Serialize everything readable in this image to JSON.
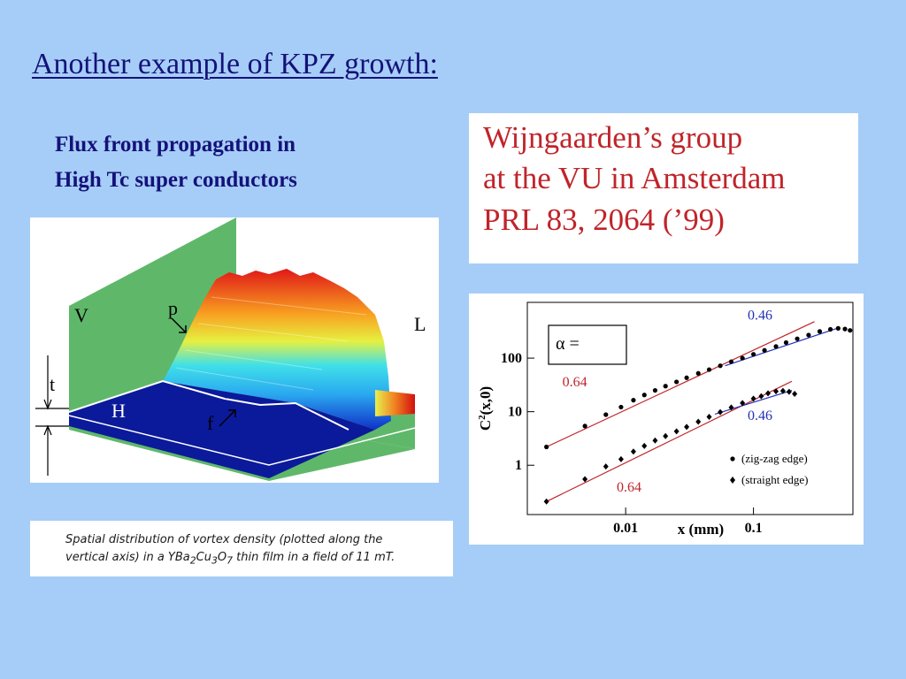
{
  "slide": {
    "title": "Another example of KPZ growth:",
    "subtitle_line1": "Flux front propagation in",
    "subtitle_line2": "High Tc super conductors"
  },
  "reference": {
    "line1": "Wijngaarden’s group",
    "line2": "at the VU in Amsterdam",
    "line3": "PRL 83, 2064 (’99)"
  },
  "surface_figure": {
    "label_v": "V",
    "label_p": "p",
    "label_l": "L",
    "label_t": "t",
    "label_h": "H",
    "label_f": "f"
  },
  "caption": {
    "line1": "Spatial distribution of vortex density (plotted along the",
    "line2_part1": "vertical axis) in a YBa",
    "sub2": "2",
    "line2_part2": "Cu",
    "sub3": "3",
    "line2_part3": "O",
    "sub7": "7",
    "line2_part4": " thin film in a field of 11 mT."
  },
  "chart_data": {
    "type": "scatter",
    "xlabel": "x (mm)",
    "ylabel_main": "C",
    "ylabel_sup": "2",
    "ylabel_rest": "(x,0)",
    "x_scale": "log",
    "y_scale": "log",
    "xlim": [
      0.0017,
      0.6
    ],
    "ylim": [
      0.12,
      1100
    ],
    "x_ticks": [
      0.01,
      0.1
    ],
    "x_tick_labels": [
      "0.01",
      "0.1"
    ],
    "y_ticks": [
      1,
      10,
      100
    ],
    "y_tick_labels": [
      "1",
      "10",
      "100"
    ],
    "legend_box_text": "α =",
    "series": [
      {
        "name": "(zig-zag edge)",
        "marker": "circle",
        "points": [
          [
            0.0024,
            2.2
          ],
          [
            0.0048,
            5.4
          ],
          [
            0.007,
            8.8
          ],
          [
            0.0092,
            12.2
          ],
          [
            0.0115,
            16.4
          ],
          [
            0.014,
            20.5
          ],
          [
            0.017,
            25
          ],
          [
            0.0205,
            30
          ],
          [
            0.025,
            36
          ],
          [
            0.03,
            43
          ],
          [
            0.037,
            52
          ],
          [
            0.045,
            61
          ],
          [
            0.055,
            72
          ],
          [
            0.067,
            86
          ],
          [
            0.082,
            100
          ],
          [
            0.1,
            118
          ],
          [
            0.122,
            140
          ],
          [
            0.15,
            165
          ],
          [
            0.18,
            195
          ],
          [
            0.22,
            230
          ],
          [
            0.27,
            270
          ],
          [
            0.33,
            315
          ],
          [
            0.4,
            345
          ],
          [
            0.46,
            360
          ],
          [
            0.52,
            350
          ],
          [
            0.57,
            330
          ]
        ]
      },
      {
        "name": "(straight edge)",
        "marker": "diamond",
        "points": [
          [
            0.0024,
            0.21
          ],
          [
            0.0048,
            0.55
          ],
          [
            0.007,
            0.95
          ],
          [
            0.0092,
            1.3
          ],
          [
            0.0115,
            1.8
          ],
          [
            0.014,
            2.3
          ],
          [
            0.017,
            2.9
          ],
          [
            0.0205,
            3.5
          ],
          [
            0.025,
            4.3
          ],
          [
            0.03,
            5.2
          ],
          [
            0.037,
            6.5
          ],
          [
            0.045,
            8
          ],
          [
            0.055,
            9.8
          ],
          [
            0.067,
            12
          ],
          [
            0.082,
            14.5
          ],
          [
            0.1,
            17.5
          ],
          [
            0.115,
            19.5
          ],
          [
            0.13,
            22
          ],
          [
            0.15,
            24
          ],
          [
            0.17,
            24.5
          ],
          [
            0.19,
            23.5
          ],
          [
            0.21,
            21.5
          ]
        ]
      }
    ],
    "fit_lines": [
      {
        "label": "0.64",
        "color": "#c0242a",
        "from": [
          0.0024,
          2.2
        ],
        "to": [
          0.3,
          480
        ]
      },
      {
        "label": "0.46",
        "color": "#2230b8",
        "from": [
          0.06,
          72
        ],
        "to": [
          0.45,
          360
        ]
      },
      {
        "label": "0.64",
        "color": "#c0242a",
        "from": [
          0.0024,
          0.21
        ],
        "to": [
          0.2,
          37
        ]
      },
      {
        "label": "0.46",
        "color": "#2230b8",
        "from": [
          0.05,
          9
        ],
        "to": [
          0.2,
          25
        ]
      }
    ],
    "annotation_labels": [
      {
        "text": "0.64",
        "color": "#c0242a",
        "x": 0.0032,
        "y": 30
      },
      {
        "text": "0.46",
        "color": "#2230b8",
        "x": 0.09,
        "y": 520
      },
      {
        "text": "0.46",
        "color": "#2230b8",
        "x": 0.09,
        "y": 7
      },
      {
        "text": "0.64",
        "color": "#c0242a",
        "x": 0.0085,
        "y": 0.32
      }
    ]
  }
}
